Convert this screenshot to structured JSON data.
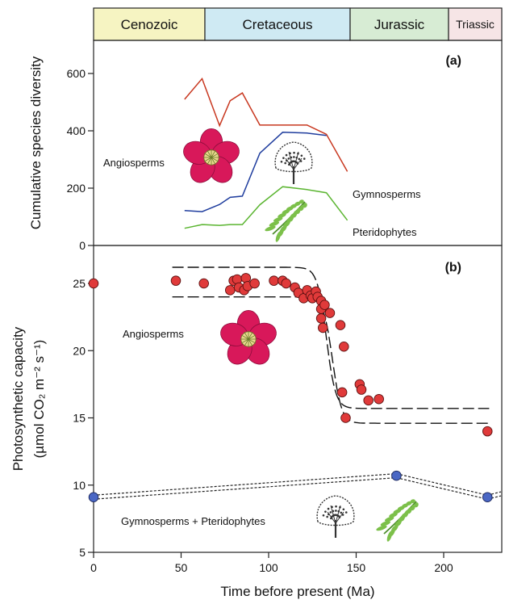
{
  "periods": [
    {
      "name": "Cenozoic",
      "color": "#f6f4c2",
      "start": 0,
      "end": 66
    },
    {
      "name": "Cretaceous",
      "color": "#cfeaf3",
      "start": 66,
      "end": 145
    },
    {
      "name": "Jurassic",
      "color": "#d7ecd4",
      "start": 145,
      "end": 201
    },
    {
      "name": "Triassic",
      "color": "#f6e5e6",
      "start": 201,
      "end": 235
    }
  ],
  "icons": {
    "flower_color": "#d8185a",
    "tree_color": "#333333",
    "fern_color": "#7cc04a"
  },
  "chart_data": [
    {
      "panel": "(a)",
      "type": "line",
      "ylabel": "Cumulative species diversity",
      "xlim": [
        0,
        235
      ],
      "ylim": [
        0,
        650
      ],
      "yticks": [
        0,
        200,
        400,
        600
      ],
      "series": [
        {
          "name": "Angiosperms",
          "color": "#c8371f",
          "x": [
            52,
            62,
            72,
            78,
            85,
            95,
            108,
            122,
            133,
            145
          ],
          "y": [
            510,
            582,
            418,
            505,
            532,
            420,
            420,
            420,
            388,
            258
          ]
        },
        {
          "name": "Gymnosperms",
          "color": "#1f3d9e",
          "x": [
            52,
            62,
            72,
            78,
            85,
            95,
            108,
            122,
            133
          ],
          "y": [
            122,
            118,
            143,
            168,
            172,
            322,
            395,
            392,
            384
          ]
        },
        {
          "name": "Pteridophytes",
          "color": "#5bb531",
          "x": [
            52,
            62,
            72,
            78,
            85,
            95,
            108,
            122,
            133,
            145
          ],
          "y": [
            60,
            73,
            70,
            73,
            73,
            142,
            205,
            195,
            184,
            88
          ]
        }
      ]
    },
    {
      "panel": "(b)",
      "type": "scatter",
      "xlabel": "Time before present (Ma)",
      "ylabel_line1": "Photosynthetic capacity",
      "ylabel_line2": "(µmol CO₂ m⁻² s⁻¹)",
      "xlim": [
        0,
        235
      ],
      "ylim": [
        5,
        27
      ],
      "xticks": [
        0,
        50,
        100,
        150,
        200
      ],
      "yticks": [
        5,
        10,
        15,
        20,
        25
      ],
      "series": [
        {
          "name": "Angiosperms",
          "color": "#e03a3a",
          "x": [
            0,
            47,
            63,
            78,
            80,
            82,
            83,
            86,
            87,
            88,
            92,
            103,
            108,
            110,
            115,
            117,
            120,
            122,
            124,
            125,
            127,
            128,
            130,
            130,
            130,
            131,
            132,
            135,
            141,
            142,
            143,
            144,
            152,
            153,
            157,
            163,
            225
          ],
          "y": [
            25,
            25.2,
            25,
            24.5,
            25.2,
            25.3,
            24.7,
            24.5,
            25.4,
            24.8,
            25,
            25.2,
            25.2,
            25,
            24.7,
            24.3,
            23.9,
            24.5,
            24.1,
            23.9,
            24.4,
            24,
            23.7,
            23.1,
            22.4,
            21.7,
            23.4,
            22.8,
            21.9,
            16.9,
            20.3,
            15,
            17.5,
            17.1,
            16.3,
            16.4,
            14
          ]
        },
        {
          "name": "Gymnosperms + Pteridophytes",
          "color": "#4a67c4",
          "x": [
            0,
            173,
            225
          ],
          "y": [
            9.1,
            10.7,
            9.1
          ]
        }
      ]
    }
  ]
}
